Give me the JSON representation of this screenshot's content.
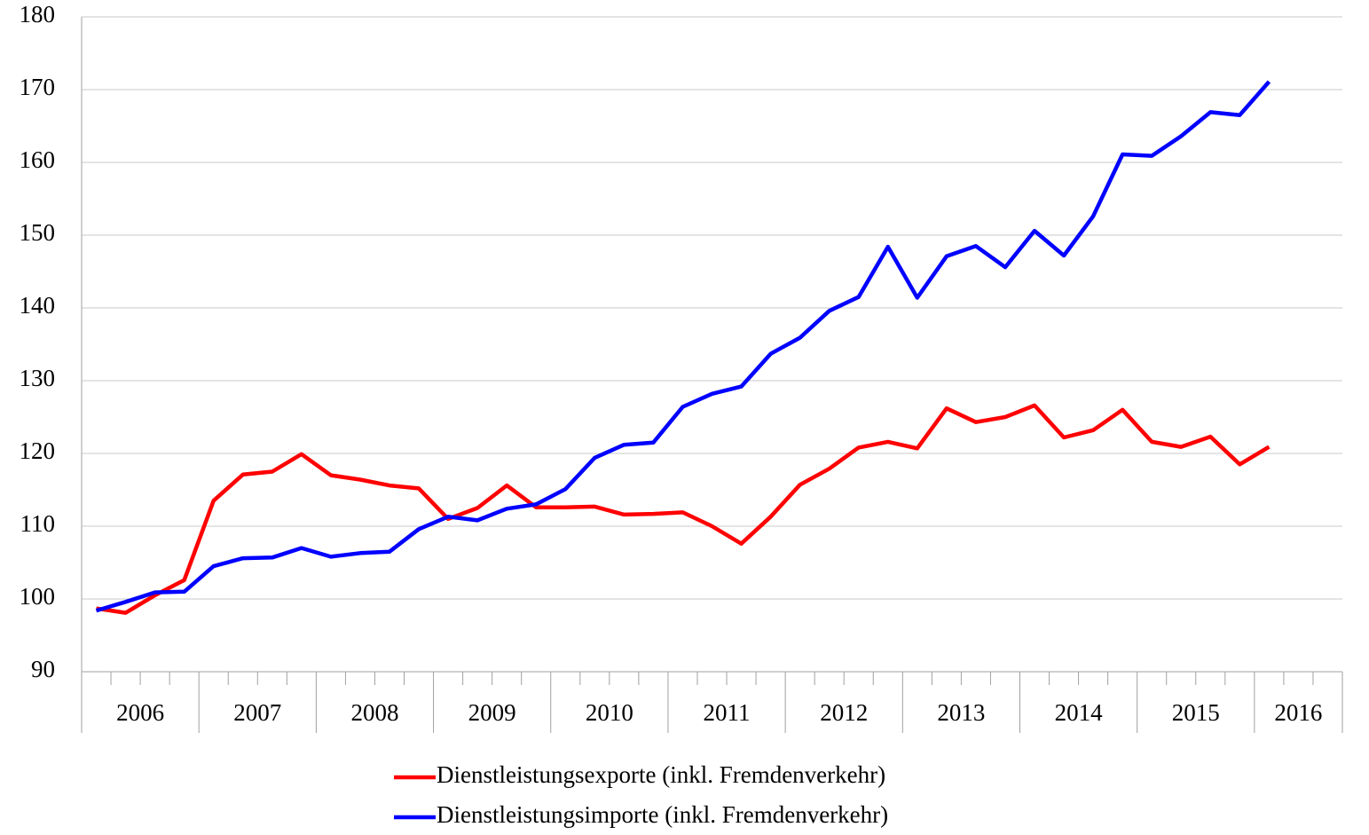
{
  "chart_data": {
    "type": "line",
    "groups": [
      "2006",
      "2007",
      "2008",
      "2009",
      "2010",
      "2011",
      "2012",
      "2013",
      "2014",
      "2015",
      "2016"
    ],
    "categories": [
      null,
      null,
      null,
      null,
      null,
      null,
      null,
      null,
      null,
      null,
      null,
      null,
      null,
      null,
      null,
      null,
      null,
      null,
      null,
      null,
      null,
      null,
      null,
      null,
      null,
      null,
      null,
      null,
      null,
      null,
      null,
      null,
      null,
      null,
      null,
      null,
      null,
      null,
      null,
      null,
      null,
      null,
      null
    ],
    "series": [
      {
        "name": "Dienstleistungsexporte (inkl. Fremdenverkehr)",
        "color": "#ff0000",
        "values": [
          98.7,
          98.1,
          100.5,
          102.6,
          113.5,
          117.1,
          117.5,
          119.9,
          117.0,
          116.4,
          115.6,
          115.2,
          111.0,
          112.5,
          115.6,
          112.6,
          112.6,
          112.7,
          111.6,
          111.7,
          111.9,
          110.0,
          107.6,
          111.3,
          115.7,
          117.9,
          120.8,
          121.6,
          120.7,
          126.2,
          124.3,
          125.0,
          126.6,
          122.2,
          123.2,
          126.0,
          121.6,
          120.9,
          122.3,
          118.5,
          120.9,
          null,
          null
        ]
      },
      {
        "name": "Dienstleistungsimporte (inkl. Fremdenverkehr)",
        "color": "#0000ff",
        "values": [
          98.4,
          99.6,
          100.9,
          101.0,
          104.5,
          105.6,
          105.7,
          107.0,
          105.8,
          106.3,
          106.5,
          109.6,
          111.3,
          110.8,
          112.4,
          113.0,
          115.1,
          119.4,
          121.2,
          121.5,
          126.4,
          128.2,
          129.2,
          133.7,
          135.9,
          139.6,
          141.5,
          148.4,
          141.4,
          147.1,
          148.5,
          145.6,
          150.6,
          147.2,
          152.6,
          161.1,
          160.9,
          163.6,
          166.9,
          166.5,
          171.1,
          null,
          null
        ]
      }
    ],
    "ylim": [
      90,
      180
    ],
    "yticks": [
      90,
      100,
      110,
      120,
      130,
      140,
      150,
      160,
      170,
      180
    ],
    "grid": true,
    "legend": "bottom"
  }
}
